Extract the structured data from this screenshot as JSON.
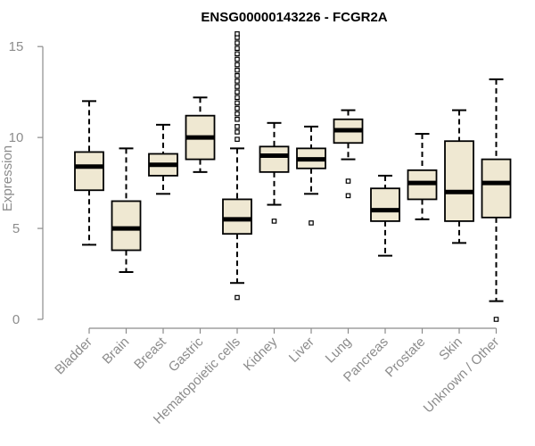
{
  "chart_data": {
    "type": "boxplot",
    "title": "ENSG00000143226 - FCGR2A",
    "xlabel": "",
    "ylabel": "Expression",
    "ylim": [
      0,
      15.5
    ],
    "yticks": [
      0,
      5,
      10,
      15
    ],
    "grid": false,
    "colors": {
      "box_fill": "#efe8d2",
      "box_stroke": "#000000",
      "median": "#000000",
      "axis": "#8c8c8c"
    },
    "categories": [
      "Bladder",
      "Brain",
      "Breast",
      "Gastric",
      "Hematopoietic cells",
      "Kidney",
      "Liver",
      "Lung",
      "Pancreas",
      "Prostate",
      "Skin",
      "Unknown / Other"
    ],
    "boxes": [
      {
        "name": "Bladder",
        "whisker_low": 4.1,
        "q1": 7.1,
        "median": 8.4,
        "q3": 9.2,
        "whisker_high": 12.0,
        "outliers": []
      },
      {
        "name": "Brain",
        "whisker_low": 2.6,
        "q1": 3.8,
        "median": 5.0,
        "q3": 6.5,
        "whisker_high": 9.4,
        "outliers": []
      },
      {
        "name": "Breast",
        "whisker_low": 6.9,
        "q1": 7.9,
        "median": 8.5,
        "q3": 9.1,
        "whisker_high": 10.7,
        "outliers": []
      },
      {
        "name": "Gastric",
        "whisker_low": 8.1,
        "q1": 8.8,
        "median": 10.0,
        "q3": 11.2,
        "whisker_high": 12.2,
        "outliers": []
      },
      {
        "name": "Hematopoietic cells",
        "whisker_low": 2.0,
        "q1": 4.7,
        "median": 5.5,
        "q3": 6.6,
        "whisker_high": 9.4,
        "outliers": [
          1.2,
          9.9,
          10.3,
          10.6,
          11.0,
          11.3,
          11.6,
          11.9,
          12.2,
          12.5,
          12.8,
          13.1,
          13.4,
          13.7,
          14.0,
          14.3,
          14.6,
          14.9,
          15.2,
          15.5,
          15.7
        ]
      },
      {
        "name": "Kidney",
        "whisker_low": 6.3,
        "q1": 8.1,
        "median": 9.0,
        "q3": 9.5,
        "whisker_high": 10.8,
        "outliers": [
          5.4
        ]
      },
      {
        "name": "Liver",
        "whisker_low": 6.9,
        "q1": 8.3,
        "median": 8.8,
        "q3": 9.4,
        "whisker_high": 10.6,
        "outliers": [
          5.3
        ]
      },
      {
        "name": "Lung",
        "whisker_low": 8.8,
        "q1": 9.7,
        "median": 10.4,
        "q3": 11.0,
        "whisker_high": 11.5,
        "outliers": [
          7.6,
          6.8
        ]
      },
      {
        "name": "Pancreas",
        "whisker_low": 3.5,
        "q1": 5.4,
        "median": 6.0,
        "q3": 7.2,
        "whisker_high": 7.9,
        "outliers": []
      },
      {
        "name": "Prostate",
        "whisker_low": 5.5,
        "q1": 6.6,
        "median": 7.5,
        "q3": 8.2,
        "whisker_high": 10.2,
        "outliers": []
      },
      {
        "name": "Skin",
        "whisker_low": 4.2,
        "q1": 5.4,
        "median": 7.0,
        "q3": 9.8,
        "whisker_high": 11.5,
        "outliers": []
      },
      {
        "name": "Unknown / Other",
        "whisker_low": 1.0,
        "q1": 5.6,
        "median": 7.5,
        "q3": 8.8,
        "whisker_high": 13.2,
        "outliers": [
          0.0
        ]
      }
    ]
  }
}
